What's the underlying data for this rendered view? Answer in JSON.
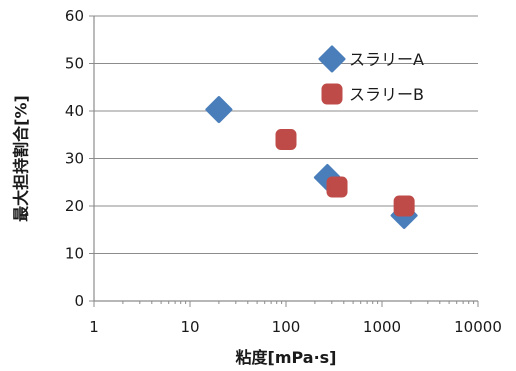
{
  "chart_data": {
    "type": "scatter",
    "title": "",
    "xlabel": "粘度[mPa·s]",
    "ylabel": "最大担持割合[%]",
    "x_scale": "log",
    "xlim": [
      1,
      10000
    ],
    "ylim": [
      0,
      60
    ],
    "x_ticks": [
      1,
      10,
      100,
      1000,
      10000
    ],
    "x_tick_labels": [
      "1",
      "10",
      "100",
      "1000",
      "10000"
    ],
    "y_ticks": [
      0,
      10,
      20,
      30,
      40,
      50,
      60
    ],
    "y_tick_labels": [
      "0",
      "10",
      "20",
      "30",
      "40",
      "50",
      "60"
    ],
    "grid": "horizontal",
    "legend": "top-right",
    "series": [
      {
        "name": "スラリーA",
        "marker": "diamond",
        "color": "#4a7ebb",
        "points": [
          {
            "x": 20,
            "y": 40.3
          },
          {
            "x": 270,
            "y": 26.0
          },
          {
            "x": 1700,
            "y": 18.0
          }
        ]
      },
      {
        "name": "スラリーB",
        "marker": "square",
        "color": "#be4b48",
        "points": [
          {
            "x": 100,
            "y": 34.0
          },
          {
            "x": 340,
            "y": 24.0
          },
          {
            "x": 1700,
            "y": 20.0
          }
        ]
      }
    ]
  }
}
